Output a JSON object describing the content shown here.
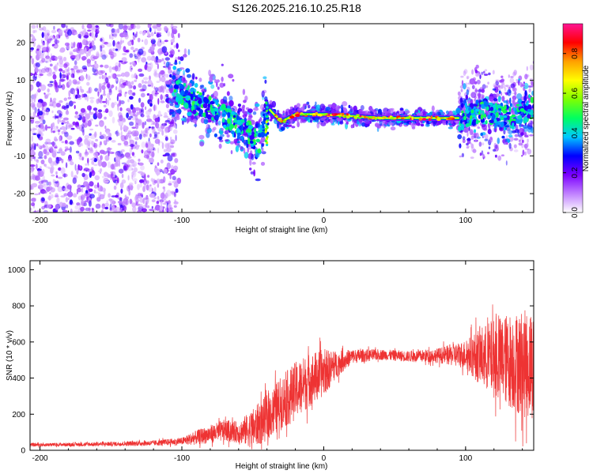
{
  "title": "S126.2025.216.10.25.R18",
  "chart_data": [
    {
      "type": "heatmap",
      "xlabel": "Height of straight line (km)",
      "ylabel": "Frequency (Hz)",
      "xlim": [
        -207,
        148
      ],
      "ylim": [
        -25,
        25
      ],
      "xticks": [
        -200,
        -100,
        0,
        100
      ],
      "xtick_labels": [
        "-200",
        "-100",
        "0",
        "100"
      ],
      "yticks": [
        -20,
        -10,
        0,
        10,
        20
      ],
      "ytick_labels": [
        "-20",
        "-10",
        "0",
        "10",
        "20"
      ],
      "colorbar": {
        "label": "Normalized spectral amplitude",
        "range": [
          0,
          0.95
        ],
        "ticks": [
          0,
          0.2,
          0.4,
          0.6,
          0.8
        ],
        "tick_labels": [
          "0.0",
          "0.2",
          "0.4",
          "0.6",
          "0.8"
        ],
        "colors": [
          "#ffffff",
          "#c080ff",
          "#7b00ff",
          "#0000ff",
          "#00c8ff",
          "#00ff60",
          "#80ff00",
          "#ffff00",
          "#ffa000",
          "#ff0000",
          "#ff1493"
        ]
      },
      "ridge": [
        {
          "x": -105,
          "freq": 8
        },
        {
          "x": -90,
          "freq": 4
        },
        {
          "x": -75,
          "freq": 2
        },
        {
          "x": -60,
          "freq": -2
        },
        {
          "x": -50,
          "freq": -5
        },
        {
          "x": -45,
          "freq": -7
        },
        {
          "x": -40,
          "freq": 3
        },
        {
          "x": -30,
          "freq": -1
        },
        {
          "x": -20,
          "freq": 1
        },
        {
          "x": 0,
          "freq": 1
        },
        {
          "x": 40,
          "freq": 0
        },
        {
          "x": 80,
          "freq": 0
        },
        {
          "x": 95,
          "freq": 0
        },
        {
          "x": 110,
          "freq": 2
        },
        {
          "x": 130,
          "freq": 0
        },
        {
          "x": 145,
          "freq": 3
        }
      ]
    },
    {
      "type": "line",
      "xlabel": "Height of straight line (km)",
      "ylabel": "SNR (10 * v/v)",
      "xlim": [
        -207,
        148
      ],
      "ylim": [
        0,
        1050
      ],
      "xticks": [
        -200,
        -100,
        0,
        100
      ],
      "xtick_labels": [
        "-200",
        "-100",
        "0",
        "100"
      ],
      "yticks": [
        0,
        200,
        400,
        600,
        800,
        1000
      ],
      "ytick_labels": [
        "0",
        "200",
        "400",
        "600",
        "800",
        "1000"
      ],
      "color": "#ee3333",
      "series": [
        {
          "x": [
            -207,
            -180,
            -150,
            -120,
            -100,
            -90,
            -80,
            -70,
            -60,
            -50,
            -40,
            -30,
            -20,
            -10,
            0,
            10,
            20,
            40,
            60,
            80,
            100,
            110,
            120,
            130,
            140,
            148
          ],
          "y": [
            30,
            32,
            35,
            40,
            50,
            70,
            90,
            110,
            100,
            120,
            180,
            260,
            330,
            390,
            430,
            480,
            520,
            530,
            520,
            525,
            530,
            520,
            510,
            500,
            480,
            470
          ],
          "noise_amplitude": [
            10,
            10,
            12,
            15,
            20,
            40,
            50,
            60,
            60,
            110,
            130,
            150,
            160,
            150,
            130,
            70,
            40,
            30,
            30,
            40,
            80,
            160,
            220,
            260,
            300,
            300
          ]
        }
      ]
    }
  ]
}
